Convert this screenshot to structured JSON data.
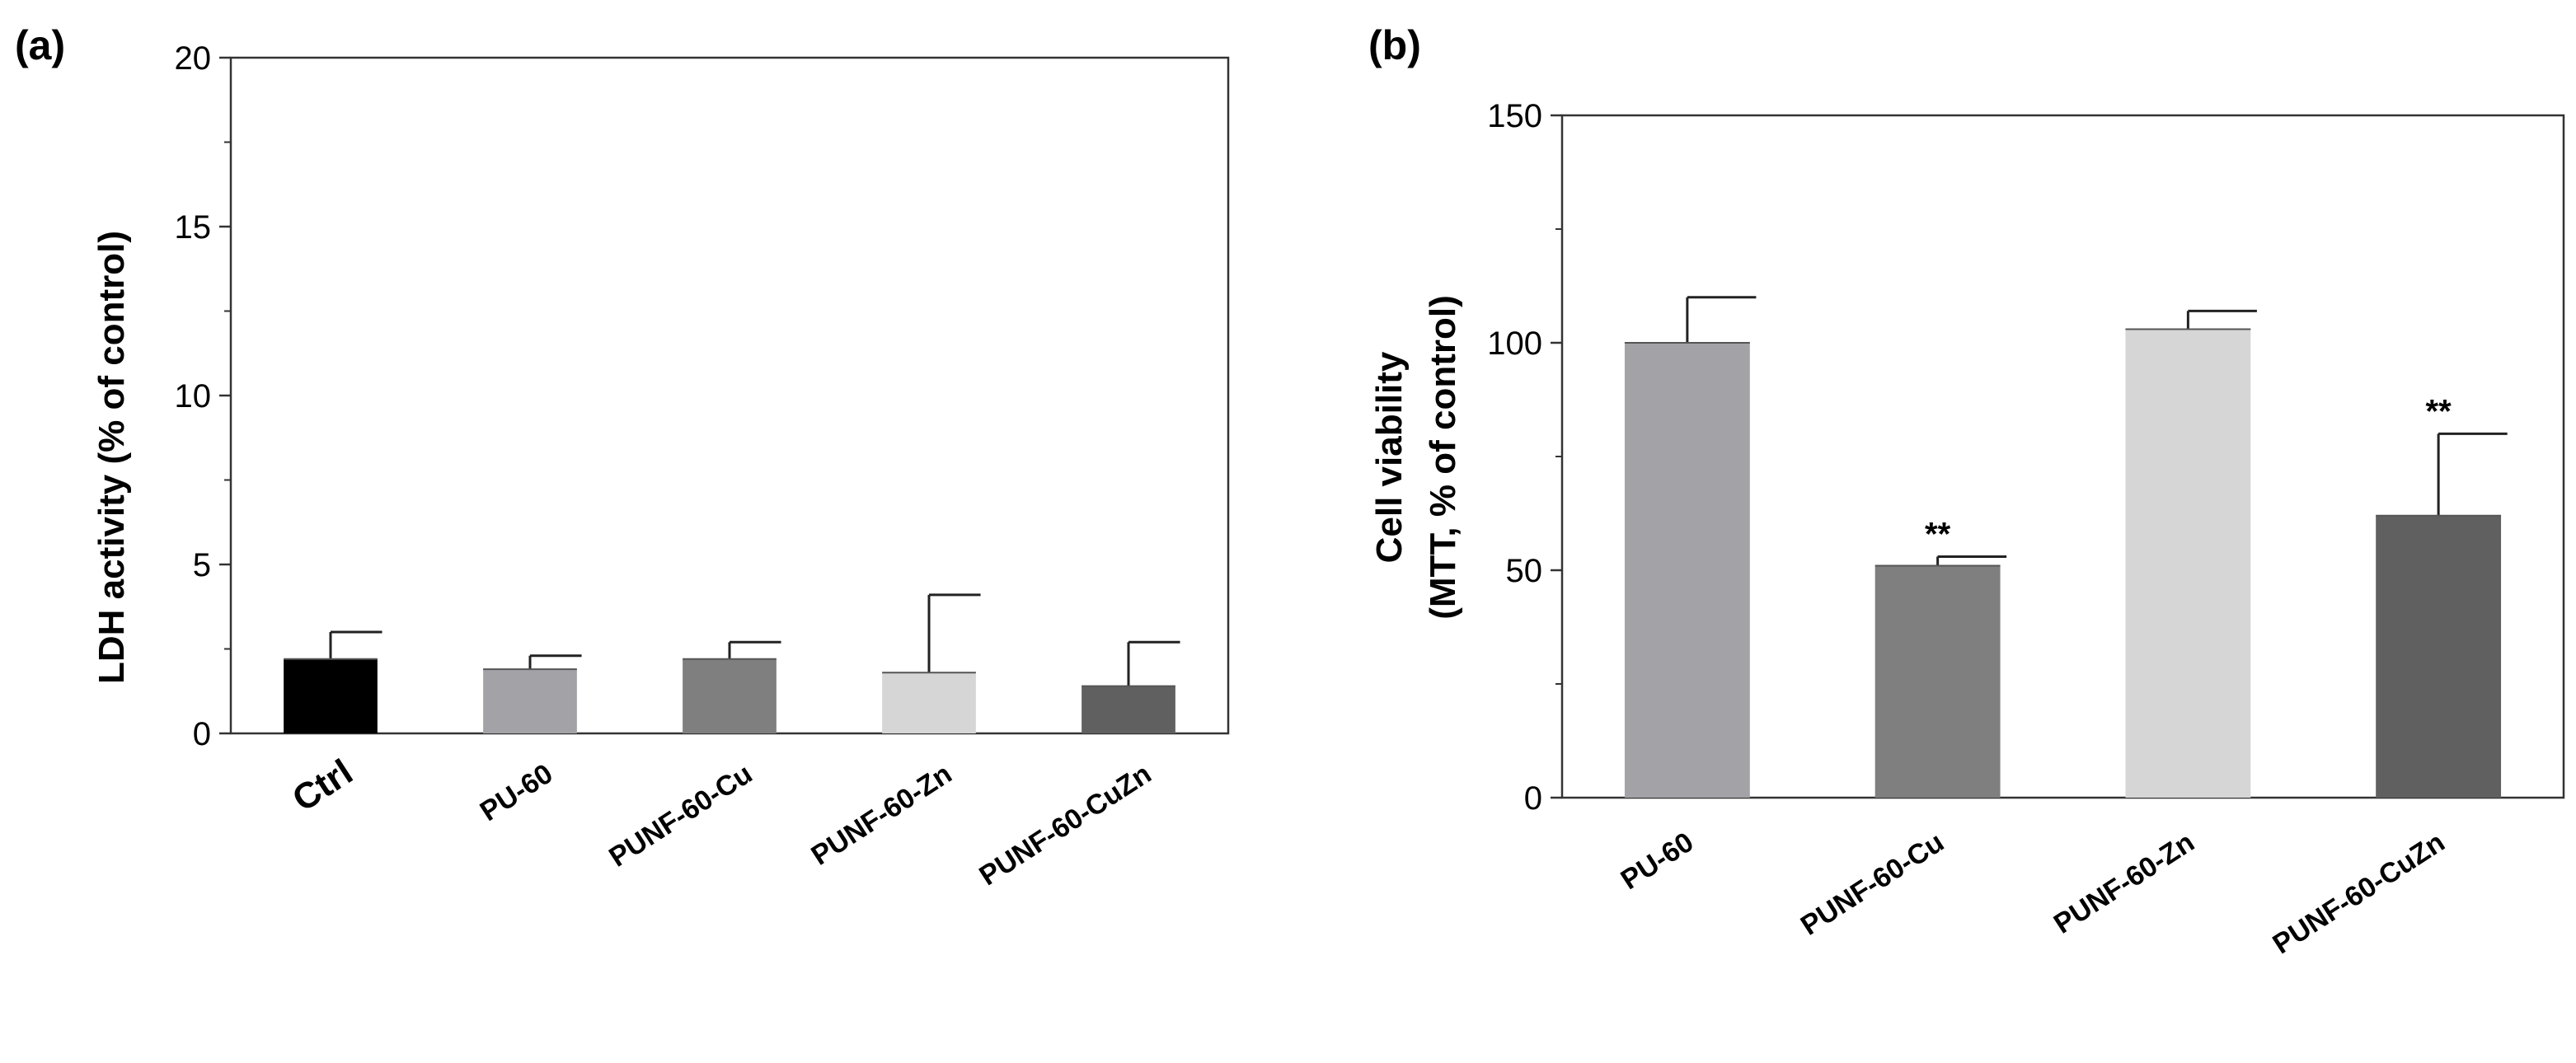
{
  "chart_data": [
    {
      "panel": "(a)",
      "type": "bar",
      "title": "",
      "xlabel": "",
      "ylabel": "LDH activity (% of control)",
      "ylim": [
        0,
        20
      ],
      "yticks": [
        0,
        5,
        10,
        15,
        20
      ],
      "categories": [
        "Ctrl",
        "PU-60",
        "PUNF-60-Cu",
        "PUNF-60-Zn",
        "PUNF-60-CuZn"
      ],
      "values": [
        2.2,
        1.9,
        2.2,
        1.8,
        1.4
      ],
      "errors": [
        0.8,
        0.4,
        0.5,
        2.3,
        1.3
      ],
      "colors": [
        "#000000",
        "#a3a2a7",
        "#7f7f7f",
        "#d6d6d6",
        "#606060"
      ],
      "annotations": [
        "",
        "",
        "",
        "",
        ""
      ]
    },
    {
      "panel": "(b)",
      "type": "bar",
      "title": "",
      "xlabel": "",
      "ylabel": "Cell viability",
      "ylabel_line2": "(MTT, % of control)",
      "ylim": [
        0,
        150
      ],
      "yticks": [
        0,
        50,
        100,
        150
      ],
      "categories": [
        "PU-60",
        "PUNF-60-Cu",
        "PUNF-60-Zn",
        "PUNF-60-CuZn"
      ],
      "values": [
        100,
        51,
        103,
        62
      ],
      "errors": [
        10,
        2,
        4,
        18
      ],
      "colors": [
        "#a3a2a7",
        "#7f7f7f",
        "#d6d6d6",
        "#606060"
      ],
      "annotations": [
        "",
        "**",
        "",
        "**"
      ]
    }
  ]
}
